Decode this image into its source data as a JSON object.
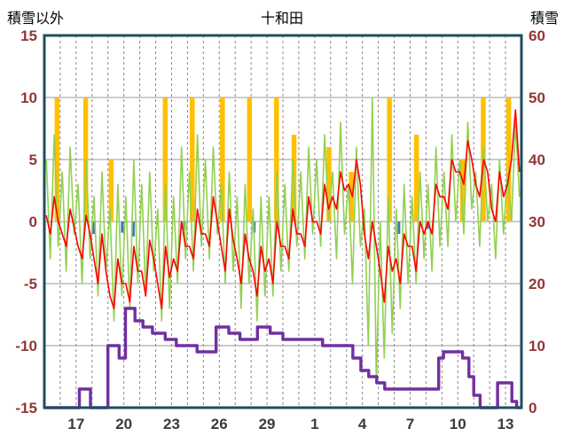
{
  "header": {
    "left_label": "積雪以外",
    "title": "十和田",
    "right_label": "積雪"
  },
  "chart_data": {
    "type": "line",
    "title": "十和田",
    "left_axis": {
      "label": "積雪以外",
      "min": -15,
      "max": 15,
      "step": 5
    },
    "right_axis": {
      "label": "積雪",
      "min": 0,
      "max": 60,
      "step": 10
    },
    "x_axis": {
      "total_days": 30,
      "tick_days": [
        2,
        5,
        8,
        11,
        14,
        17,
        20,
        23,
        26,
        29
      ],
      "tick_labels": [
        "17",
        "20",
        "23",
        "26",
        "29",
        "1",
        "4",
        "7",
        "10",
        "13"
      ],
      "daily_dashed_grid": true
    },
    "colors": {
      "orange_bars": "#FFC000",
      "blue_bars": "#4472C4",
      "green_line": "#92D050",
      "red_line": "#FF0000",
      "purple_step": "#7030A0",
      "h_grid": "#9a9a9a",
      "v_grid": "#8a8a8a",
      "border": "#1F4E5F",
      "y_labels": "#943634",
      "x_labels": "#3a3a3a",
      "background": "#FFFFFF"
    },
    "series": [
      {
        "name": "orange-bars",
        "type": "bar",
        "axis": "left",
        "points": [
          {
            "d": 0.8,
            "v": 10
          },
          {
            "d": 2.6,
            "v": 10
          },
          {
            "d": 4.2,
            "v": 5
          },
          {
            "d": 7.6,
            "v": 10
          },
          {
            "d": 9.3,
            "v": 10
          },
          {
            "d": 11.2,
            "v": 10
          },
          {
            "d": 12.9,
            "v": 10
          },
          {
            "d": 14.6,
            "v": 10
          },
          {
            "d": 15.7,
            "v": 7
          },
          {
            "d": 17.9,
            "v": 6
          },
          {
            "d": 19.3,
            "v": 4
          },
          {
            "d": 21.7,
            "v": 10
          },
          {
            "d": 23.4,
            "v": 7
          },
          {
            "d": 26.3,
            "v": 5
          },
          {
            "d": 27.6,
            "v": 10
          },
          {
            "d": 29.2,
            "v": 10
          }
        ]
      },
      {
        "name": "blue-bars",
        "type": "bar",
        "axis": "left",
        "points": [
          {
            "d": 3.1,
            "v": -1
          },
          {
            "d": 4.9,
            "v": -0.9
          },
          {
            "d": 5.6,
            "v": -1.2
          },
          {
            "d": 8.8,
            "v": -0.7
          },
          {
            "d": 13.2,
            "v": -0.9
          },
          {
            "d": 20.1,
            "v": -0.7
          },
          {
            "d": 22.3,
            "v": -1
          },
          {
            "d": 24.1,
            "v": -0.6
          }
        ]
      },
      {
        "name": "green-line",
        "type": "line",
        "axis": "left",
        "points_per_day": 4,
        "values": [
          5,
          -3,
          7,
          -2,
          4,
          -4,
          6,
          -1,
          3,
          -5,
          5,
          -3,
          2,
          -6,
          4,
          -4,
          1,
          -8,
          3,
          -6,
          2,
          -7,
          5,
          -5,
          3,
          -6,
          4,
          -4,
          1,
          -8,
          3,
          -7,
          2,
          -5,
          6,
          -3,
          4,
          -4,
          7,
          -2,
          5,
          -3,
          6,
          -1,
          3,
          -5,
          4,
          -4,
          2,
          -7,
          3,
          -5,
          1,
          -8,
          2,
          -6,
          2,
          -6,
          4,
          -4,
          3,
          -4,
          5,
          -2,
          4,
          -3,
          6,
          -1,
          5,
          -2,
          7,
          0,
          4,
          -3,
          8,
          -1,
          3,
          -5,
          6,
          -2,
          1,
          -10,
          10,
          -13,
          0,
          -11,
          2,
          -9,
          1,
          -7,
          3,
          -5,
          2,
          -5,
          4,
          -3,
          3,
          -4,
          6,
          -2,
          4,
          -2,
          7,
          0,
          5,
          -1,
          8,
          1,
          4,
          -2,
          6,
          0,
          3,
          -3,
          5,
          -1,
          4,
          0,
          8,
          2
        ]
      },
      {
        "name": "red-line",
        "type": "line",
        "axis": "left",
        "points_per_day": 4,
        "values": [
          0.5,
          -1,
          2,
          0,
          -1,
          -2,
          1,
          -0.5,
          -2,
          -3,
          0.5,
          -1,
          -3,
          -5,
          -1,
          -4,
          -6,
          -7,
          -3,
          -5,
          -5,
          -6.5,
          -2,
          -4,
          -4,
          -6,
          -1.5,
          -3,
          -5,
          -7,
          -2,
          -4.5,
          -3,
          -4,
          0,
          -2,
          -2,
          -3,
          1,
          -1,
          -1,
          -2,
          2,
          0,
          -2,
          -4,
          1,
          -1.5,
          -3,
          -5,
          -1,
          -3,
          -4,
          -6,
          -2,
          -4,
          -3,
          -5,
          0,
          -2,
          -2,
          -3,
          1,
          -1,
          -1,
          -2,
          2,
          0,
          0,
          -1,
          3,
          1,
          2,
          1,
          4,
          2.5,
          3,
          2,
          5,
          3,
          -1,
          -3,
          0,
          -2,
          -4,
          -6.5,
          -2,
          -4,
          -3,
          -5,
          -1,
          -2,
          -2,
          -4,
          0,
          -1,
          0,
          -1,
          3,
          2,
          2,
          1,
          5,
          4,
          4,
          3,
          6.5,
          5,
          3,
          2,
          5,
          4,
          1,
          0,
          4,
          2,
          3,
          5,
          9,
          4
        ]
      },
      {
        "name": "purple-step-snow",
        "type": "step",
        "axis": "right",
        "steps": [
          [
            0,
            0
          ],
          [
            2.2,
            3
          ],
          [
            2.9,
            0
          ],
          [
            4.0,
            10
          ],
          [
            4.7,
            8
          ],
          [
            5.1,
            16
          ],
          [
            5.7,
            14
          ],
          [
            6.2,
            13
          ],
          [
            6.8,
            12
          ],
          [
            7.6,
            11
          ],
          [
            8.3,
            10
          ],
          [
            9.6,
            9
          ],
          [
            10.8,
            13
          ],
          [
            11.6,
            12
          ],
          [
            12.3,
            11
          ],
          [
            13.4,
            13
          ],
          [
            14.2,
            12
          ],
          [
            15.0,
            11
          ],
          [
            16.5,
            11
          ],
          [
            17.5,
            10
          ],
          [
            18.8,
            10
          ],
          [
            19.4,
            8
          ],
          [
            19.9,
            6
          ],
          [
            20.4,
            5
          ],
          [
            20.9,
            4
          ],
          [
            21.4,
            3
          ],
          [
            24.4,
            3
          ],
          [
            24.8,
            8
          ],
          [
            25.1,
            9
          ],
          [
            26.3,
            8
          ],
          [
            26.7,
            5
          ],
          [
            27.0,
            2
          ],
          [
            27.4,
            0
          ],
          [
            28.5,
            4
          ],
          [
            29.4,
            1
          ],
          [
            29.7,
            0
          ],
          [
            30,
            0
          ]
        ]
      }
    ]
  }
}
